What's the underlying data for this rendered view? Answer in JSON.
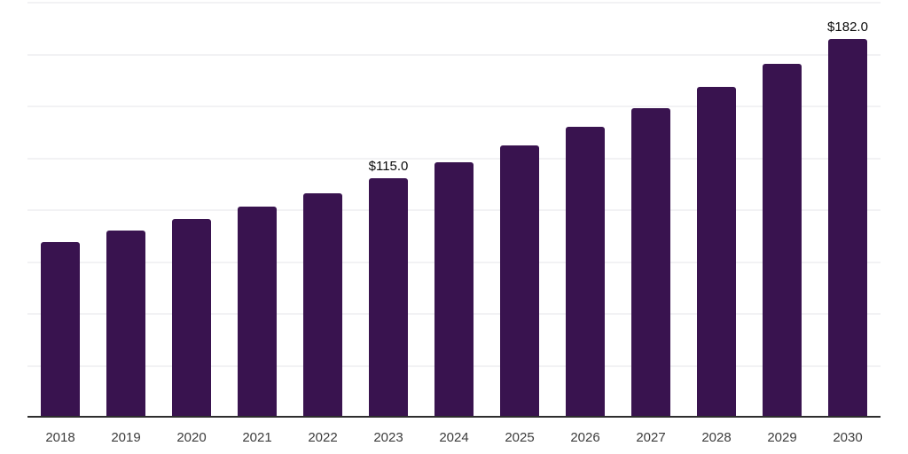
{
  "chart_data": {
    "type": "bar",
    "title": "",
    "xlabel": "",
    "ylabel": "",
    "categories": [
      "2018",
      "2019",
      "2020",
      "2021",
      "2022",
      "2023",
      "2024",
      "2025",
      "2026",
      "2027",
      "2028",
      "2029",
      "2030"
    ],
    "values": [
      84.4,
      89.7,
      95.1,
      101.4,
      107.9,
      115.0,
      122.7,
      130.9,
      139.6,
      148.8,
      158.8,
      169.9,
      182.0
    ],
    "bar_labels": [
      null,
      null,
      null,
      null,
      null,
      "$115.0",
      null,
      null,
      null,
      null,
      null,
      null,
      "$182.0"
    ],
    "ylim": [
      0,
      200
    ],
    "grid_step": 25,
    "grid": true,
    "y_tick_labels_visible": false,
    "legend_position": "none",
    "colors": {
      "bar": "#39134f",
      "axis_line": "#2e2e2e",
      "gridline": "#f2f2f4",
      "tick_label": "#3c3c3c",
      "data_label": "#0b0b0b",
      "background": "#ffffff"
    }
  }
}
